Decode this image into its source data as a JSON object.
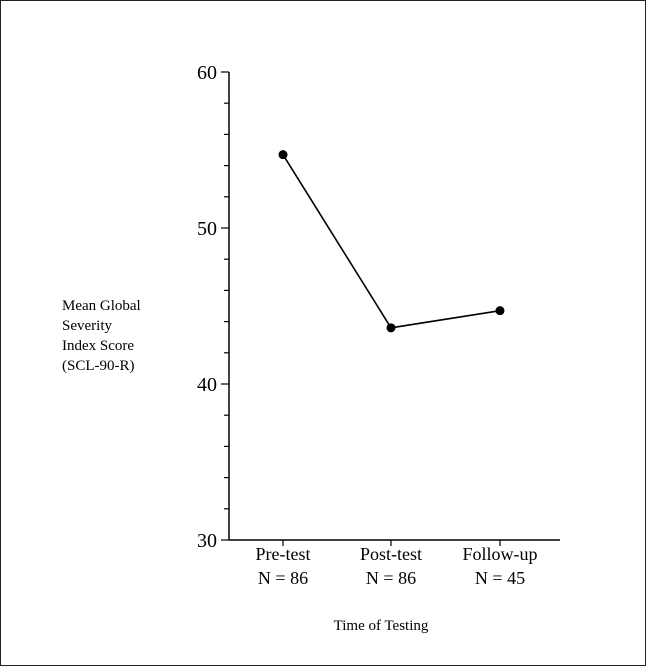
{
  "chart_data": {
    "type": "line",
    "categories": [
      "Pre-test",
      "Post-test",
      "Follow-up"
    ],
    "category_sublabels": [
      "N = 86",
      "N = 86",
      "N = 45"
    ],
    "series": [
      {
        "values": [
          54.7,
          43.6,
          44.7
        ]
      }
    ],
    "ylabel_lines": [
      "Mean Global",
      "Severity",
      "Index Score",
      "(SCL-90-R)"
    ],
    "xlabel": "Time of Testing",
    "ylim": [
      30,
      60
    ],
    "yticks": [
      30,
      40,
      50,
      60
    ],
    "yminor_step": 2,
    "grid": false,
    "line_color": "#000000"
  }
}
